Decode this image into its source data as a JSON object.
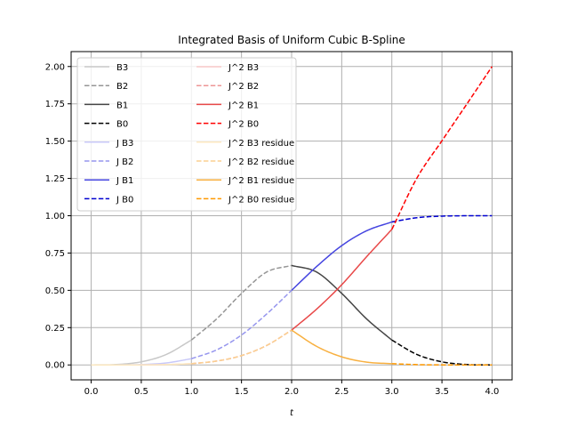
{
  "chart_data": {
    "type": "line",
    "title": "Integrated Basis of Uniform Cubic B-Spline",
    "xlabel": "t",
    "ylabel": "",
    "xlim": [
      -0.2,
      4.2
    ],
    "ylim": [
      -0.1,
      2.1
    ],
    "xticks": [
      "0.0",
      "0.5",
      "1.0",
      "1.5",
      "2.0",
      "2.5",
      "3.0",
      "3.5",
      "4.0"
    ],
    "yticks": [
      "0.00",
      "0.25",
      "0.50",
      "0.75",
      "1.00",
      "1.25",
      "1.50",
      "1.75",
      "2.00"
    ],
    "grid": true,
    "legend_location": "top-left",
    "legend_columns": 2,
    "series": [
      {
        "name": "B3",
        "color": "#c8c8c8",
        "style": "solid",
        "x": [
          0,
          0.25,
          0.5,
          0.75,
          1.0
        ],
        "y": [
          0,
          0.0026,
          0.0208,
          0.0703,
          0.1667
        ]
      },
      {
        "name": "B2",
        "color": "#969696",
        "style": "dashed",
        "x": [
          1.0,
          1.25,
          1.5,
          1.75,
          2.0
        ],
        "y": [
          0.1667,
          0.3073,
          0.4792,
          0.6224,
          0.6667
        ]
      },
      {
        "name": "B1",
        "color": "#454545",
        "style": "solid",
        "x": [
          2.0,
          2.25,
          2.5,
          2.75,
          3.0
        ],
        "y": [
          0.6667,
          0.6224,
          0.4792,
          0.3073,
          0.1667
        ]
      },
      {
        "name": "B0",
        "color": "#000000",
        "style": "dashed",
        "x": [
          3.0,
          3.25,
          3.5,
          3.75,
          4.0
        ],
        "y": [
          0.1667,
          0.0703,
          0.0208,
          0.0026,
          0
        ]
      },
      {
        "name": "J B3",
        "color": "#c8c8f8",
        "style": "solid",
        "x": [
          0,
          0.25,
          0.5,
          0.75,
          1.0
        ],
        "y": [
          0,
          0.0002,
          0.0026,
          0.0132,
          0.0417
        ]
      },
      {
        "name": "J B2",
        "color": "#9696ee",
        "style": "dashed",
        "x": [
          1.0,
          1.25,
          1.5,
          1.75,
          2.0
        ],
        "y": [
          0.0417,
          0.1003,
          0.2005,
          0.3405,
          0.5
        ]
      },
      {
        "name": "J B1",
        "color": "#4545e0",
        "style": "solid",
        "x": [
          2.0,
          2.25,
          2.5,
          2.75,
          3.0
        ],
        "y": [
          0.5,
          0.6595,
          0.7995,
          0.8997,
          0.9583
        ]
      },
      {
        "name": "J B0",
        "color": "#0000d0",
        "style": "dashed",
        "x": [
          3.0,
          3.25,
          3.5,
          3.75,
          4.0
        ],
        "y": [
          0.9583,
          0.9868,
          0.9974,
          0.9998,
          1.0
        ]
      },
      {
        "name": "J^2 B3",
        "color": "#f8c8c8",
        "style": "solid",
        "x": [
          0,
          0.25,
          0.5,
          0.75,
          1.0
        ],
        "y": [
          0,
          0,
          0.0003,
          0.0021,
          0.0083
        ]
      },
      {
        "name": "J^2 B2",
        "color": "#ee9696",
        "style": "dashed",
        "x": [
          1.0,
          1.25,
          1.5,
          1.75,
          2.0
        ],
        "y": [
          0.0083,
          0.0257,
          0.0625,
          0.1299,
          0.2333
        ]
      },
      {
        "name": "J^2 B1",
        "color": "#e84848",
        "style": "solid",
        "x": [
          2.0,
          2.25,
          2.5,
          2.75,
          3.0
        ],
        "y": [
          0.2333,
          0.3743,
          0.5375,
          0.7265,
          0.9083
        ]
      },
      {
        "name": "J^2 B0",
        "color": "#ff0000",
        "style": "dashed",
        "x": [
          3.0,
          3.25,
          3.5,
          3.75,
          4.0
        ],
        "y": [
          0.9083,
          1.2522,
          1.5023,
          1.7501,
          2.0
        ]
      },
      {
        "name": "J^2 B3 residue",
        "color": "#fce8c0",
        "style": "solid",
        "x": [
          0,
          0.25,
          0.5,
          0.75,
          1.0
        ],
        "y": [
          0,
          0,
          0.0003,
          0.0021,
          0.0083
        ]
      },
      {
        "name": "J^2 B2 residue",
        "color": "#fbd090",
        "style": "dashed",
        "x": [
          1.0,
          1.25,
          1.5,
          1.75,
          2.0
        ],
        "y": [
          0.0083,
          0.0257,
          0.0625,
          0.1299,
          0.2333
        ]
      },
      {
        "name": "J^2 B1 residue",
        "color": "#f8b040",
        "style": "solid",
        "x": [
          2.0,
          2.25,
          2.5,
          2.75,
          3.0
        ],
        "y": [
          0.2333,
          0.1243,
          0.0542,
          0.0185,
          0.0083
        ]
      },
      {
        "name": "J^2 B0 residue",
        "color": "#ff9900",
        "style": "dashed",
        "x": [
          3.0,
          3.25,
          3.5,
          3.75,
          4.0
        ],
        "y": [
          0.0083,
          0.0021,
          0.0003,
          0,
          0
        ]
      }
    ]
  }
}
